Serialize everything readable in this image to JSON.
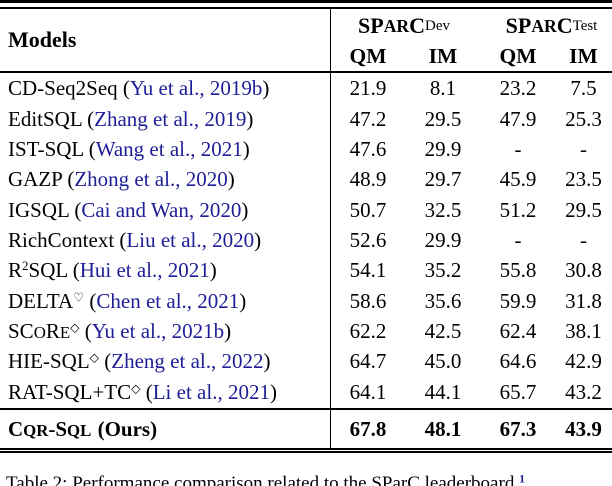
{
  "page": {
    "background": "#ffffff",
    "text_color": "#000000",
    "citation_color": "#1e1e96"
  },
  "table": {
    "header": {
      "models_label": "Models",
      "groups": [
        {
          "title": "SP{AR}C_{Dev}"
        },
        {
          "title": "SP{AR}C_{Test}"
        }
      ],
      "metrics": [
        "QM",
        "IM",
        "QM",
        "IM"
      ]
    },
    "rows": [
      {
        "name": "CD-Seq2Seq",
        "citation": "Yu et al., 2019b",
        "values": [
          "21.9",
          "8.1",
          "23.2",
          "7.5"
        ]
      },
      {
        "name": "EditSQL",
        "citation": "Zhang et al., 2019",
        "values": [
          "47.2",
          "29.5",
          "47.9",
          "25.3"
        ]
      },
      {
        "name": "IST-SQL",
        "citation": "Wang et al., 2021",
        "values": [
          "47.6",
          "29.9",
          "-",
          "-"
        ]
      },
      {
        "name": "GAZP",
        "citation": "Zhong et al., 2020",
        "values": [
          "48.9",
          "29.7",
          "45.9",
          "23.5"
        ]
      },
      {
        "name": "IGSQL",
        "citation": "Cai and Wan, 2020",
        "values": [
          "50.7",
          "32.5",
          "51.2",
          "29.5"
        ]
      },
      {
        "name": "RichContext",
        "citation": "Liu et al., 2020",
        "values": [
          "52.6",
          "29.9",
          "-",
          "-"
        ]
      },
      {
        "name": "R^{2}SQL",
        "citation": "Hui et al., 2021",
        "values": [
          "54.1",
          "35.2",
          "55.8",
          "30.8"
        ]
      },
      {
        "name": "DELTA^{♡}",
        "citation": "Chen et al., 2021",
        "values": [
          "58.6",
          "35.6",
          "59.9",
          "31.8"
        ]
      },
      {
        "name": "SC{O}R{E}^{◇}",
        "citation": "Yu et al., 2021b",
        "values": [
          "62.2",
          "42.5",
          "62.4",
          "38.1"
        ]
      },
      {
        "name": "HIE-SQL^{◇}",
        "citation": "Zheng et al., 2022",
        "values": [
          "64.7",
          "45.0",
          "64.6",
          "42.9"
        ]
      },
      {
        "name": "RAT-SQL+TC^{◇}",
        "citation": "Li et al., 2021",
        "values": [
          "64.1",
          "44.1",
          "65.7",
          "43.2"
        ]
      }
    ],
    "final_row": {
      "name": "C{QR}-S{QL}",
      "suffix": "(Ours)",
      "values": [
        "67.8",
        "48.1",
        "67.3",
        "43.9"
      ]
    }
  },
  "caption": {
    "label": "Table 2:",
    "text": "Performance comparison related to the SParC leaderboard.",
    "footnote_marker": "1"
  }
}
